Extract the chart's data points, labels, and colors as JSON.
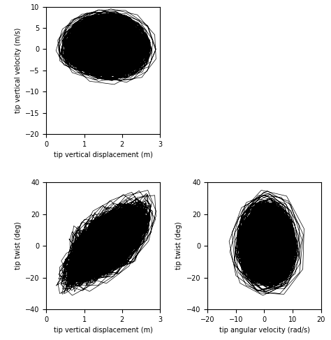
{
  "top_plot": {
    "xlabel": "tip vertical displacement (m)",
    "ylabel": "tip vertical velocity (m/s)",
    "xlim": [
      0,
      3
    ],
    "ylim": [
      -20,
      10
    ],
    "xticks": [
      0,
      1,
      2,
      3
    ],
    "yticks": [
      -20,
      -15,
      -10,
      -5,
      0,
      5,
      10
    ]
  },
  "bottom_left": {
    "xlabel": "tip vertical displacement (m)",
    "ylabel": "tip twist (deg)",
    "xlim": [
      0,
      3
    ],
    "ylim": [
      -40,
      40
    ],
    "xticks": [
      0,
      1,
      2,
      3
    ],
    "yticks": [
      -40,
      -20,
      0,
      20,
      40
    ]
  },
  "bottom_right": {
    "xlabel": "tip angular velocity (rad/s)",
    "ylabel": "tip twist (deg)",
    "xlim": [
      -20,
      20
    ],
    "ylim": [
      -40,
      40
    ],
    "xticks": [
      -20,
      -10,
      0,
      10,
      20
    ],
    "yticks": [
      -40,
      -20,
      0,
      20,
      40
    ]
  },
  "line_color": "#000000",
  "line_width": 0.5,
  "background_color": "#ffffff"
}
